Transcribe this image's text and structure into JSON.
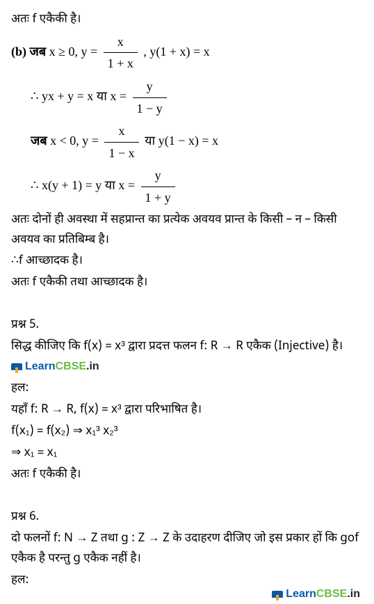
{
  "l1": "अतः f एकैकी है।",
  "b_label": "(b) जब",
  "b1a": "x ≥ 0,  y =",
  "b1_num": "x",
  "b1_den": "1 + x",
  "b1c": ", y(1 + x) = x",
  "b2a": "∴    yx + y = x    या    x =",
  "b2_num": "y",
  "b2_den": "1 − y",
  "b3_label": "जब",
  "b3a": "x < 0,      y =",
  "b3_num": "x",
  "b3_den": "1 − x",
  "b3c": "  या  y(1 − x) = x",
  "b4a": "∴    x(y + 1) = y   या   x =",
  "b4_num": "y",
  "b4_den": "1 + y",
  "c1": "अतः दोनों ही अवस्था में सहप्रान्त का प्रत्येक अवयव प्रान्त के किसी – न – किसी अवयव का प्रतिबिम्ब है।",
  "c2": "∴f आच्छादक है।",
  "c3": "अतः f एकैकी तथा आच्छादक है।",
  "q5_label": "प्रश्न 5.",
  "q5_text_a": "सिद्ध कीजिए कि f(x) = x³ द्वारा प्रदत्त फलन f: R → R एकैक (Injective) है।",
  "sol_label": "हल:",
  "q5_s1": "यहाँ f: R → R, f(x) = x³  द्वारा परिभाषित है।",
  "q5_s2": "f(x₁) = f(x₂) ⇒ x₁³ x₂³",
  "q5_s3": "⇒ x₁ = x₁",
  "q5_s4": "अतः f एकैकी है।",
  "q6_label": "प्रश्न 6.",
  "q6_text": "दो फलनों f: N → Z तथा g : Z → Z के उदाहरण दीजिए जो इस प्रकार हों कि gof एकैक है परन्तु g एकैक नहीं है।",
  "logo_learn": "Learn",
  "logo_cbse": "CBSE",
  "logo_in": ".in"
}
